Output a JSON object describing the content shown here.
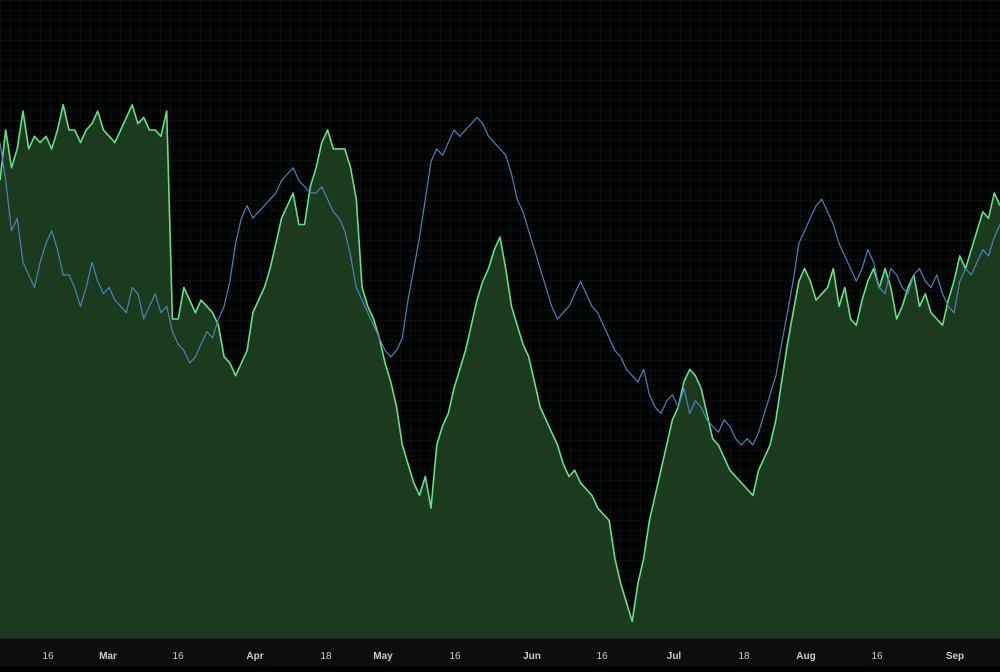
{
  "chart_data": {
    "type": "area",
    "title": "",
    "xlabel": "",
    "ylabel": "",
    "x_tick_labels": [
      "16",
      "Mar",
      "16",
      "Apr",
      "18",
      "May",
      "16",
      "Jun",
      "16",
      "Jul",
      "18",
      "Aug",
      "16",
      "Sep"
    ],
    "x_tick_label_bold": [
      false,
      true,
      false,
      true,
      false,
      true,
      false,
      true,
      false,
      true,
      false,
      true,
      false,
      true
    ],
    "x_range_days": [
      0,
      232
    ],
    "ylim": [
      0,
      100
    ],
    "grid": true,
    "legend": "none",
    "series": [
      {
        "style": "area",
        "color": "#66e08a",
        "fill": "#1c3a1e",
        "values": [
          72,
          80,
          74,
          77,
          83,
          77,
          79,
          78,
          79,
          77,
          80,
          84,
          80,
          80,
          78,
          80,
          81,
          83,
          80,
          79,
          78,
          80,
          82,
          84,
          81,
          82,
          80,
          80,
          79,
          83,
          50,
          50,
          55,
          53,
          51,
          53,
          52,
          51,
          49,
          44,
          43,
          41,
          43,
          45,
          51,
          53,
          55,
          58,
          62,
          66,
          68,
          70,
          65,
          65,
          71,
          74,
          78,
          80,
          77,
          77,
          77,
          74,
          69,
          55,
          52,
          50,
          47,
          43,
          40,
          36,
          30,
          27,
          24,
          22,
          25,
          20,
          30,
          33,
          35,
          39,
          42,
          45,
          49,
          53,
          56,
          58,
          61,
          63,
          58,
          52,
          49,
          46,
          44,
          40,
          36,
          34,
          32,
          30,
          27,
          25,
          26,
          24,
          23,
          22,
          20,
          19,
          18,
          12,
          8,
          5,
          2,
          8,
          12,
          18,
          22,
          26,
          30,
          34,
          36,
          40,
          42,
          41,
          39,
          35,
          31,
          30,
          28,
          26,
          25,
          24,
          23,
          22,
          26,
          28,
          30,
          34,
          40,
          46,
          51,
          56,
          58,
          56,
          53,
          54,
          55,
          58,
          52,
          55,
          50,
          49,
          53,
          56,
          58,
          55,
          58,
          55,
          50,
          52,
          55,
          57,
          52,
          54,
          51,
          50,
          49,
          53,
          56,
          60,
          58,
          61,
          64,
          67,
          66,
          70,
          68
        ]
      },
      {
        "style": "line",
        "color": "#4c82b8",
        "values": [
          78,
          72,
          64,
          66,
          59,
          57,
          55,
          59,
          62,
          64,
          61,
          57,
          57,
          55,
          52,
          55,
          59,
          56,
          54,
          55,
          53,
          52,
          51,
          55,
          54,
          50,
          52,
          54,
          51,
          52,
          48,
          46,
          45,
          43,
          44,
          46,
          48,
          47,
          50,
          52,
          56,
          62,
          66,
          68,
          66,
          67,
          68,
          69,
          70,
          72,
          73,
          74,
          72,
          71,
          70,
          70,
          71,
          69,
          67,
          66,
          64,
          60,
          55,
          53,
          51,
          49,
          47,
          45,
          44,
          45,
          47,
          53,
          58,
          63,
          69,
          75,
          77,
          76,
          78,
          80,
          79,
          80,
          81,
          82,
          81,
          79,
          78,
          77,
          76,
          73,
          69,
          67,
          64,
          61,
          58,
          55,
          52,
          50,
          51,
          52,
          54,
          56,
          54,
          52,
          51,
          49,
          47,
          45,
          44,
          42,
          41,
          40,
          42,
          38,
          36,
          35,
          37,
          38,
          36,
          39,
          35,
          37,
          36,
          34,
          33,
          32,
          34,
          33,
          31,
          30,
          31,
          30,
          32,
          35,
          38,
          41,
          46,
          51,
          56,
          62,
          64,
          66,
          68,
          69,
          67,
          65,
          62,
          60,
          58,
          56,
          58,
          61,
          59,
          55,
          54,
          58,
          57,
          55,
          54,
          57,
          58,
          56,
          55,
          57,
          54,
          52,
          51,
          56,
          58,
          57,
          59,
          61,
          60,
          63,
          65
        ]
      }
    ]
  }
}
